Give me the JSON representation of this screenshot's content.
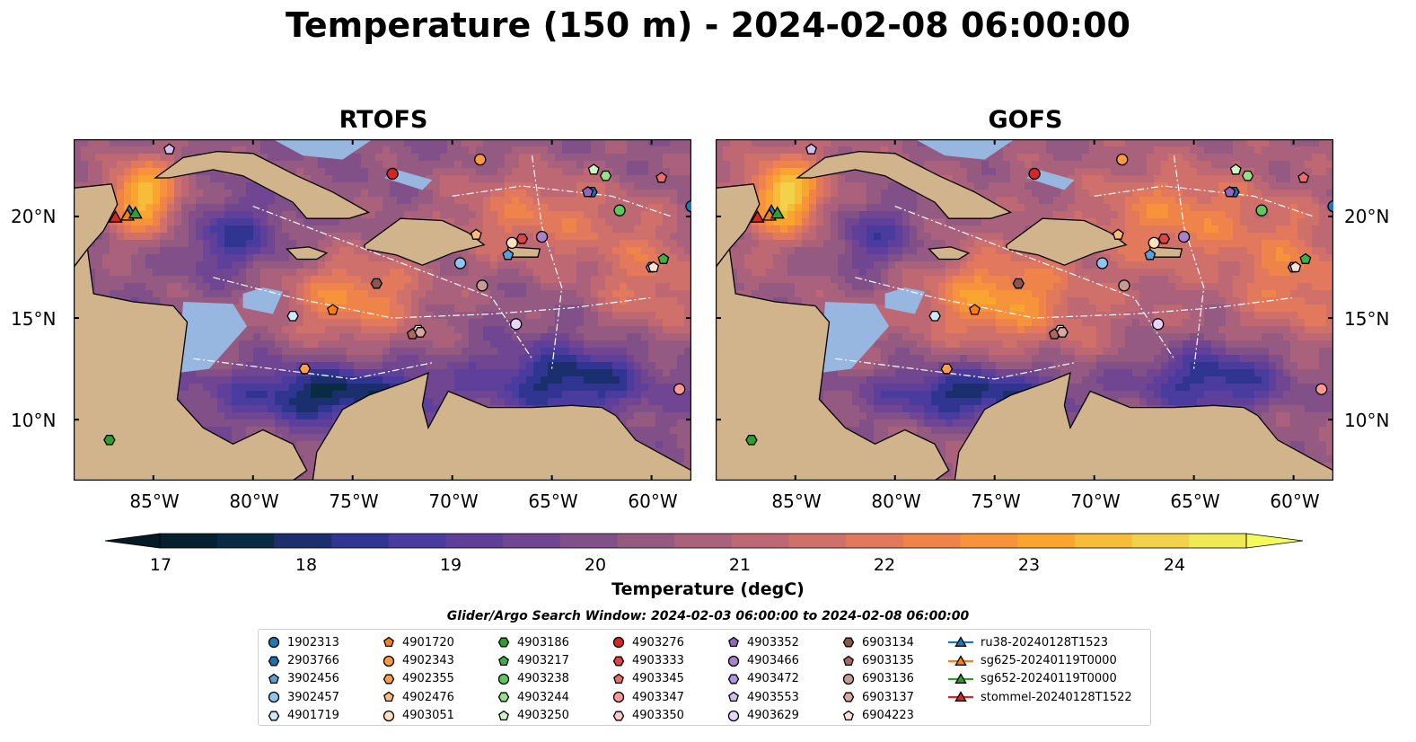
{
  "title": "Temperature (150 m) - 2024-02-08 06:00:00",
  "panels": [
    {
      "title": "RTOFS"
    },
    {
      "title": "GOFS"
    }
  ],
  "latitude_labels": [
    "20°N",
    "15°N",
    "10°N"
  ],
  "longitude_labels": [
    "85°W",
    "80°W",
    "75°W",
    "70°W",
    "65°W",
    "60°W"
  ],
  "colorbar": {
    "label": "Temperature (degC)",
    "ticks": [
      "17",
      "18",
      "19",
      "20",
      "21",
      "22",
      "23",
      "24"
    ],
    "colors": [
      "#05202e",
      "#0a2b44",
      "#1b2e6d",
      "#2f3590",
      "#4a3b9e",
      "#5e3f9a",
      "#704692",
      "#815089",
      "#955a82",
      "#a9617c",
      "#be6874",
      "#d0706a",
      "#e2795c",
      "#ef844b",
      "#f7933a",
      "#f9a530",
      "#f7bc3a",
      "#f1d24a",
      "#f0e956"
    ],
    "extend_colors": {
      "min": "#051a24",
      "max": "#f3fb5a"
    },
    "color_legend": {
      "land": "#d2b48c",
      "shallow_water": "#97b6e0"
    }
  },
  "chart_data": {
    "type": "map",
    "field": "Temperature (150 m)",
    "time": "2024-02-08 06:00:00",
    "units": "degC",
    "vmin": 17,
    "vmax": 24.5,
    "extent_lon": [
      -89.0,
      -58.0
    ],
    "extent_lat": [
      7.0,
      23.8
    ],
    "ticks_lon": [
      -85,
      -80,
      -75,
      -70,
      -65,
      -60
    ],
    "ticks_lat": [
      10,
      15,
      20
    ],
    "argo_floats": [
      {
        "id": "1902313",
        "lon": -58.0,
        "lat": 20.5,
        "marker": "circle",
        "color": "#1f77b4"
      },
      {
        "id": "2903766",
        "lon": -63.0,
        "lat": 21.2,
        "marker": "hexagon",
        "color": "#1f6fb0"
      },
      {
        "id": "3902456",
        "lon": -67.2,
        "lat": 18.1,
        "marker": "pentagon",
        "color": "#5aa0d8"
      },
      {
        "id": "3902457",
        "lon": -69.6,
        "lat": 17.7,
        "marker": "circle",
        "color": "#8ec6f0"
      },
      {
        "id": "4901719",
        "lon": -78.0,
        "lat": 15.1,
        "marker": "hexagon",
        "color": "#cfe8fb"
      },
      {
        "id": "4901720",
        "lon": -76.0,
        "lat": 15.4,
        "marker": "pentagon",
        "color": "#ff7f0e"
      },
      {
        "id": "4902343",
        "lon": -68.6,
        "lat": 22.8,
        "marker": "circle",
        "color": "#ff9a3a"
      },
      {
        "id": "4902355",
        "lon": -77.4,
        "lat": 12.5,
        "marker": "hexagon",
        "color": "#ff9e45"
      },
      {
        "id": "4902476",
        "lon": -68.8,
        "lat": 19.1,
        "marker": "pentagon",
        "color": "#ffbb78"
      },
      {
        "id": "4903051",
        "lon": -67.0,
        "lat": 18.7,
        "marker": "circle",
        "color": "#ffe0bf"
      },
      {
        "id": "4903186",
        "lon": -87.2,
        "lat": 9.0,
        "marker": "hexagon",
        "color": "#2ca02c"
      },
      {
        "id": "4903217",
        "lon": -59.4,
        "lat": 17.9,
        "marker": "pentagon",
        "color": "#3cb043"
      },
      {
        "id": "4903238",
        "lon": -61.6,
        "lat": 20.3,
        "marker": "circle",
        "color": "#5cc95c"
      },
      {
        "id": "4903244",
        "lon": -62.3,
        "lat": 22.0,
        "marker": "hexagon",
        "color": "#98df8a"
      },
      {
        "id": "4903250",
        "lon": -62.9,
        "lat": 22.3,
        "marker": "pentagon",
        "color": "#ccf5c2"
      },
      {
        "id": "4903276",
        "lon": -73.0,
        "lat": 22.1,
        "marker": "circle",
        "color": "#d62728"
      },
      {
        "id": "4903333",
        "lon": -66.5,
        "lat": 18.9,
        "marker": "hexagon",
        "color": "#e04444"
      },
      {
        "id": "4903345",
        "lon": -59.5,
        "lat": 21.9,
        "marker": "pentagon",
        "color": "#ef6b6b"
      },
      {
        "id": "4903347",
        "lon": -58.6,
        "lat": 11.5,
        "marker": "circle",
        "color": "#ff9896"
      },
      {
        "id": "4903350",
        "lon": -71.7,
        "lat": 14.4,
        "marker": "hexagon",
        "color": "#ffc9c7"
      },
      {
        "id": "4903352",
        "lon": -63.2,
        "lat": 21.2,
        "marker": "pentagon",
        "color": "#9467bd"
      },
      {
        "id": "4903466",
        "lon": -65.5,
        "lat": 19.0,
        "marker": "circle",
        "color": "#a783cc"
      },
      {
        "id": "4903472",
        "lon": -60.0,
        "lat": 17.5,
        "marker": "hexagon",
        "color": "#b294e0"
      },
      {
        "id": "4903553",
        "lon": -84.2,
        "lat": 23.3,
        "marker": "pentagon",
        "color": "#d4bdf0"
      },
      {
        "id": "4903629",
        "lon": -66.8,
        "lat": 14.7,
        "marker": "circle",
        "color": "#e8d5ff"
      },
      {
        "id": "6903134",
        "lon": -73.8,
        "lat": 16.7,
        "marker": "hexagon",
        "color": "#8c564b"
      },
      {
        "id": "6903135",
        "lon": -72.0,
        "lat": 14.2,
        "marker": "pentagon",
        "color": "#a86a5e"
      },
      {
        "id": "6903136",
        "lon": -68.5,
        "lat": 16.6,
        "marker": "circle",
        "color": "#c49c94"
      },
      {
        "id": "6903137",
        "lon": -71.6,
        "lat": 14.3,
        "marker": "hexagon",
        "color": "#dba8a0"
      },
      {
        "id": "6904223",
        "lon": -59.9,
        "lat": 17.5,
        "marker": "pentagon",
        "color": "#fde0d8"
      }
    ],
    "gliders": [
      {
        "id": "ru38-20240128T1523",
        "lon": -86.2,
        "lat": 20.2,
        "marker": "triangle",
        "color": "#1f77b4"
      },
      {
        "id": "sg625-20240119T0000",
        "lon": -86.3,
        "lat": 20.0,
        "marker": "triangle",
        "color": "#ff7f0e"
      },
      {
        "id": "sg652-20240119T0000",
        "lon": -85.9,
        "lat": 20.1,
        "marker": "triangle",
        "color": "#2ca02c"
      },
      {
        "id": "stommel-20240128T1522",
        "lon": -86.9,
        "lat": 19.9,
        "marker": "triangle",
        "color": "#d62728"
      }
    ]
  },
  "search_window": "Glider/Argo Search Window: 2024-02-03 06:00:00 to 2024-02-08 06:00:00",
  "legend": {
    "columns": [
      [
        {
          "label": "1902313",
          "marker": "circle",
          "color": "#1f77b4"
        },
        {
          "label": "2903766",
          "marker": "hexagon",
          "color": "#1f6fb0"
        },
        {
          "label": "3902456",
          "marker": "pentagon",
          "color": "#5aa0d8"
        },
        {
          "label": "3902457",
          "marker": "circle",
          "color": "#8ec6f0"
        },
        {
          "label": "4901719",
          "marker": "hexagon",
          "color": "#cfe8fb"
        }
      ],
      [
        {
          "label": "4901720",
          "marker": "pentagon",
          "color": "#ff7f0e"
        },
        {
          "label": "4902343",
          "marker": "circle",
          "color": "#ff9a3a"
        },
        {
          "label": "4902355",
          "marker": "hexagon",
          "color": "#ff9e45"
        },
        {
          "label": "4902476",
          "marker": "pentagon",
          "color": "#ffbb78"
        },
        {
          "label": "4903051",
          "marker": "circle",
          "color": "#ffe0bf"
        }
      ],
      [
        {
          "label": "4903186",
          "marker": "hexagon",
          "color": "#2ca02c"
        },
        {
          "label": "4903217",
          "marker": "pentagon",
          "color": "#3cb043"
        },
        {
          "label": "4903238",
          "marker": "circle",
          "color": "#5cc95c"
        },
        {
          "label": "4903244",
          "marker": "hexagon",
          "color": "#98df8a"
        },
        {
          "label": "4903250",
          "marker": "pentagon",
          "color": "#ccf5c2"
        }
      ],
      [
        {
          "label": "4903276",
          "marker": "circle",
          "color": "#d62728"
        },
        {
          "label": "4903333",
          "marker": "hexagon",
          "color": "#e04444"
        },
        {
          "label": "4903345",
          "marker": "pentagon",
          "color": "#ef6b6b"
        },
        {
          "label": "4903347",
          "marker": "circle",
          "color": "#ff9896"
        },
        {
          "label": "4903350",
          "marker": "hexagon",
          "color": "#ffc9c7"
        }
      ],
      [
        {
          "label": "4903352",
          "marker": "pentagon",
          "color": "#9467bd"
        },
        {
          "label": "4903466",
          "marker": "circle",
          "color": "#a783cc"
        },
        {
          "label": "4903472",
          "marker": "hexagon",
          "color": "#b294e0"
        },
        {
          "label": "4903553",
          "marker": "pentagon",
          "color": "#d4bdf0"
        },
        {
          "label": "4903629",
          "marker": "circle",
          "color": "#e8d5ff"
        }
      ],
      [
        {
          "label": "6903134",
          "marker": "hexagon",
          "color": "#8c564b"
        },
        {
          "label": "6903135",
          "marker": "pentagon",
          "color": "#a86a5e"
        },
        {
          "label": "6903136",
          "marker": "circle",
          "color": "#c49c94"
        },
        {
          "label": "6903137",
          "marker": "hexagon",
          "color": "#dba8a0"
        },
        {
          "label": "6904223",
          "marker": "pentagon",
          "color": "#fde0d8"
        }
      ],
      [
        {
          "label": "ru38-20240128T1523",
          "marker": "triangle-line",
          "color": "#1f77b4"
        },
        {
          "label": "sg625-20240119T0000",
          "marker": "triangle-line",
          "color": "#ff7f0e"
        },
        {
          "label": "sg652-20240119T0000",
          "marker": "triangle-line",
          "color": "#2ca02c"
        },
        {
          "label": "stommel-20240128T1522",
          "marker": "triangle-line",
          "color": "#d62728"
        }
      ]
    ]
  }
}
